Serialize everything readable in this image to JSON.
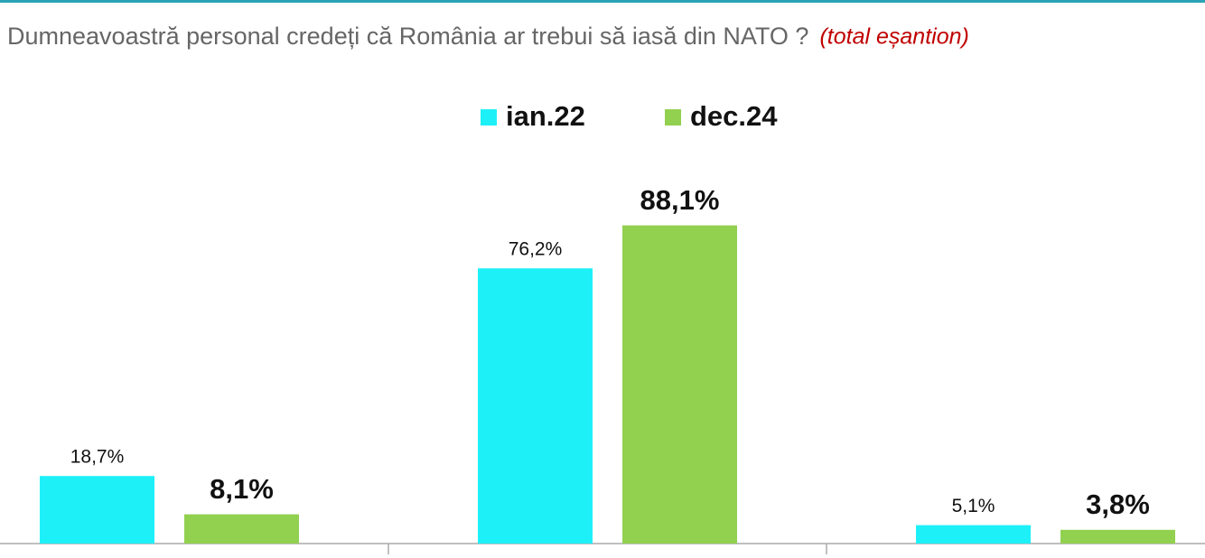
{
  "chart_data": {
    "type": "bar",
    "title": "Dumneavoastră personal credeți că România ar trebui să iasă din NATO ?",
    "subtitle": "(total eșantion)",
    "categories": [
      null,
      null,
      null
    ],
    "series": [
      {
        "name": "ian.22",
        "color": "#1ef0f8",
        "values": [
          18.7,
          76.2,
          5.1
        ],
        "value_labels": [
          "18,7%",
          "76,2%",
          "5,1%"
        ]
      },
      {
        "name": "dec.24",
        "color": "#92d050",
        "values": [
          8.1,
          88.1,
          3.8
        ],
        "value_labels": [
          "8,1%",
          "88,1%",
          "3,8%"
        ]
      }
    ],
    "legend": "top"
  }
}
